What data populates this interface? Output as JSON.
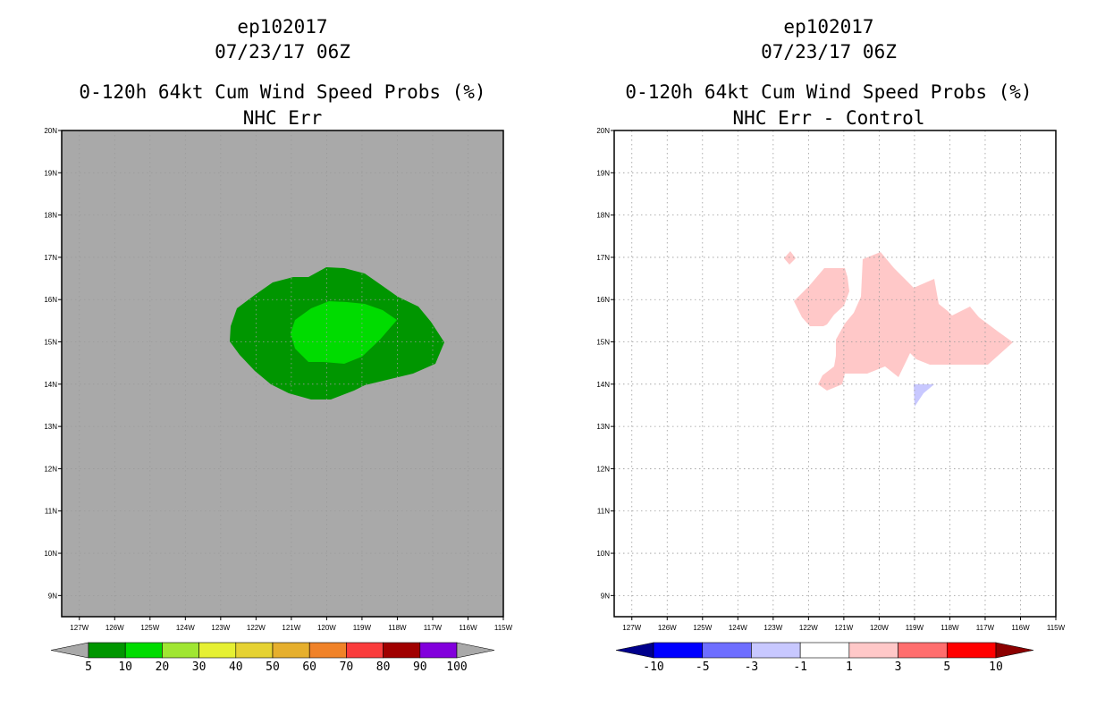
{
  "left_panel": {
    "storm": "ep102017",
    "datetime": "07/23/17 06Z",
    "title": "0-120h 64kt Cum Wind Speed Probs (%)",
    "subtitle": "NHC Err",
    "lat_ticks": [
      "9N",
      "10N",
      "11N",
      "12N",
      "13N",
      "14N",
      "15N",
      "16N",
      "17N",
      "18N",
      "19N",
      "20N"
    ],
    "lon_ticks": [
      "127W",
      "126W",
      "125W",
      "124W",
      "123W",
      "122W",
      "121W",
      "120W",
      "119W",
      "118W",
      "117W",
      "116W",
      "115W"
    ],
    "background_color": "#a9a9a9",
    "colorbar": {
      "labels": [
        "5",
        "10",
        "20",
        "30",
        "40",
        "50",
        "60",
        "70",
        "80",
        "90",
        "100"
      ],
      "colors": [
        "#009600",
        "#00dc00",
        "#a0e632",
        "#e6f032",
        "#e6d232",
        "#e6af2d",
        "#f08228",
        "#fa3c3c",
        "#a00000",
        "#8200dc"
      ],
      "end_colors": [
        "#a9a9a9",
        "#a9a9a9"
      ]
    }
  },
  "right_panel": {
    "storm": "ep102017",
    "datetime": "07/23/17 06Z",
    "title": "0-120h 64kt Cum Wind Speed Probs (%)",
    "subtitle": "NHC Err - Control",
    "lat_ticks": [
      "9N",
      "10N",
      "11N",
      "12N",
      "13N",
      "14N",
      "15N",
      "16N",
      "17N",
      "18N",
      "19N",
      "20N"
    ],
    "lon_ticks": [
      "127W",
      "126W",
      "125W",
      "124W",
      "123W",
      "122W",
      "121W",
      "120W",
      "119W",
      "118W",
      "117W",
      "116W",
      "115W"
    ],
    "background_color": "#ffffff",
    "colorbar": {
      "labels": [
        "-10",
        "-5",
        "-3",
        "-1",
        "1",
        "3",
        "5",
        "10"
      ],
      "colors": [
        "#0000ff",
        "#6e6eff",
        "#c8c8ff",
        "#ffffff",
        "#ffc8c8",
        "#ff6e6e",
        "#ff0000"
      ],
      "end_colors": [
        "#00008c",
        "#8c0000"
      ]
    }
  },
  "contours": {
    "left_outer_color": "#009600",
    "left_inner_color": "#00dc00",
    "right_positive_color": "#ffc8c8",
    "right_negative_color": "#c8c8ff"
  }
}
